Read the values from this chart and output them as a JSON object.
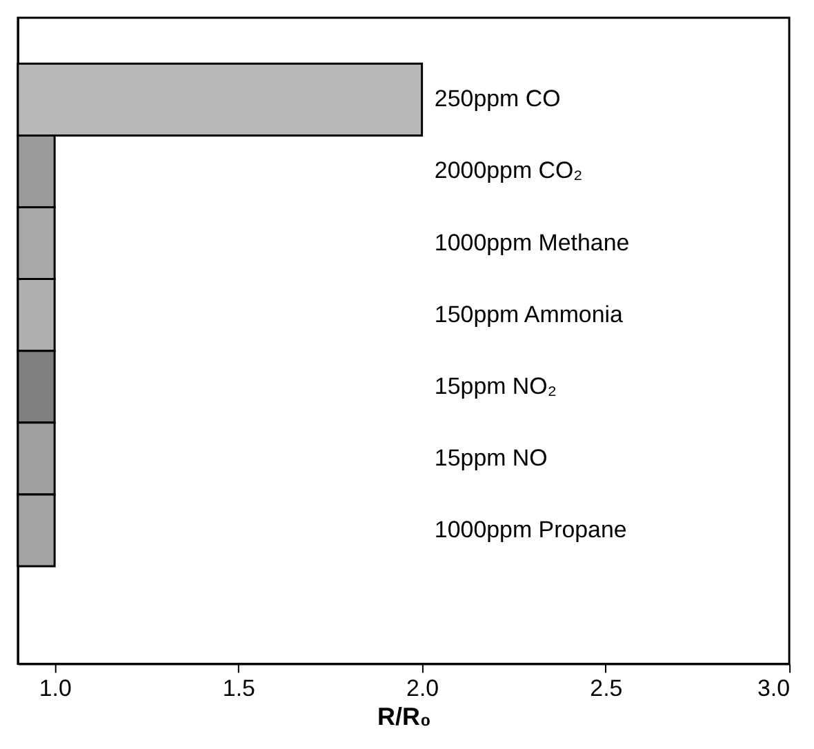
{
  "chart_data": {
    "type": "bar",
    "orientation": "horizontal",
    "xlabel": "R/R₀",
    "categories": [
      "250ppm CO",
      "2000ppm CO₂",
      "1000ppm Methane",
      "150ppm Ammonia",
      "15ppm NO₂",
      "15ppm NO",
      "1000ppm Propane"
    ],
    "values": [
      2.0,
      1.0,
      1.0,
      1.0,
      1.0,
      1.0,
      1.0
    ],
    "colors": [
      "#b8b8b8",
      "#9a9a9a",
      "#a8a8a8",
      "#b0b0b0",
      "#808080",
      "#a0a0a0",
      "#a4a4a4"
    ],
    "xlim": [
      0.9,
      3.0
    ],
    "xticks": [
      {
        "value": 1,
        "label": "1.0"
      },
      1.5,
      {
        "value": 2,
        "label": "2.0"
      },
      2.5,
      {
        "value": 3,
        "label": "3.0"
      }
    ],
    "tick_labels": "x",
    "grid": false
  }
}
